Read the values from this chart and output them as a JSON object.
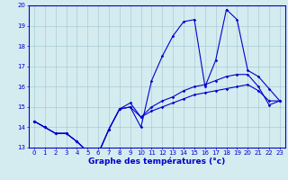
{
  "xlabel": "Graphe des températures (°c)",
  "background_color": "#d4ecf0",
  "grid_color": "#aaccd4",
  "line_color": "#0000cc",
  "x": [
    0,
    1,
    2,
    3,
    4,
    5,
    6,
    7,
    8,
    9,
    10,
    11,
    12,
    13,
    14,
    15,
    16,
    17,
    18,
    19,
    20,
    21,
    22,
    23
  ],
  "line1": [
    14.3,
    14.0,
    13.7,
    13.7,
    13.3,
    12.8,
    12.7,
    13.9,
    14.9,
    15.0,
    14.0,
    16.3,
    17.5,
    18.5,
    19.2,
    19.3,
    16.0,
    17.3,
    19.8,
    19.3,
    16.8,
    16.5,
    15.9,
    15.3
  ],
  "line2": [
    14.3,
    14.0,
    13.7,
    13.7,
    13.3,
    12.8,
    12.7,
    13.9,
    14.9,
    15.2,
    14.5,
    15.0,
    15.3,
    15.5,
    15.8,
    16.0,
    16.1,
    16.3,
    16.5,
    16.6,
    16.6,
    16.0,
    15.1,
    15.3
  ],
  "line3": [
    14.3,
    14.0,
    13.7,
    13.7,
    13.3,
    12.8,
    12.7,
    13.9,
    14.9,
    15.0,
    14.5,
    14.8,
    15.0,
    15.2,
    15.4,
    15.6,
    15.7,
    15.8,
    15.9,
    16.0,
    16.1,
    15.8,
    15.3,
    15.3
  ],
  "ylim": [
    13,
    20
  ],
  "yticks": [
    13,
    14,
    15,
    16,
    17,
    18,
    19,
    20
  ],
  "xticks": [
    0,
    1,
    2,
    3,
    4,
    5,
    6,
    7,
    8,
    9,
    10,
    11,
    12,
    13,
    14,
    15,
    16,
    17,
    18,
    19,
    20,
    21,
    22,
    23
  ],
  "marker": "D",
  "markersize": 1.8,
  "linewidth": 0.8,
  "xlabel_fontsize": 6.5,
  "tick_fontsize": 5.0,
  "figwidth": 3.2,
  "figheight": 2.0,
  "dpi": 100
}
